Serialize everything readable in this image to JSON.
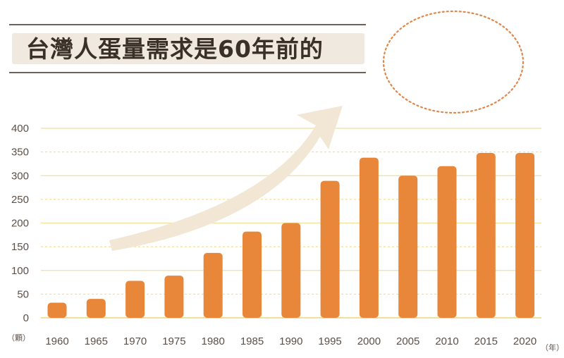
{
  "title": "台灣人蛋量需求是60年前的",
  "colors": {
    "bar": "#e8863a",
    "gridline": "#f3df9c",
    "arrow": "#f1e7d4",
    "oval": "#e0864a",
    "title_text": "#3a3028",
    "title_band": "#efe9df",
    "title_rule": "#6e6259"
  },
  "chart_data": {
    "type": "bar",
    "categories": [
      "1960",
      "1965",
      "1970",
      "1975",
      "1980",
      "1985",
      "1990",
      "1995",
      "2000",
      "2005",
      "2010",
      "2015",
      "2020"
    ],
    "values": [
      32,
      40,
      78,
      89,
      137,
      182,
      200,
      289,
      338,
      300,
      320,
      348,
      348
    ],
    "yticks": [
      "0",
      "50",
      "100",
      "150",
      "200",
      "250",
      "300",
      "350",
      "400"
    ],
    "ylim": [
      0,
      400
    ],
    "y_unit": "（顆）",
    "x_unit": "（年）",
    "grid": true,
    "decorations": {
      "rising_arrow": true,
      "dotted_oval": true
    }
  }
}
